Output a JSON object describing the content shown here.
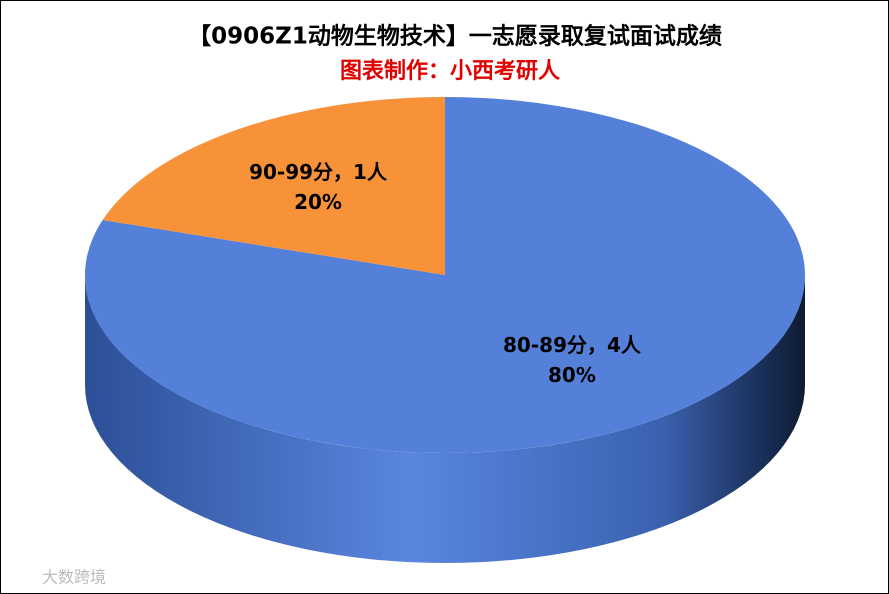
{
  "chart_data": {
    "type": "pie",
    "title": "【0906Z1动物生物技术】一志愿录取复试面试成绩",
    "subtitle": "图表制作：小西考研人",
    "categories": [
      "80-89分，4人",
      "90-99分，1人"
    ],
    "values": [
      80,
      20
    ],
    "value_labels": [
      "80%",
      "20%"
    ],
    "colors": [
      "#5580d9",
      "#f79239"
    ],
    "watermark": "大数跨境"
  }
}
